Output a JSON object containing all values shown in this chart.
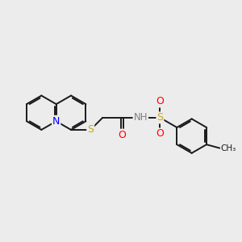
{
  "background_color": "#ececec",
  "bond_color": "#1a1a1a",
  "atom_colors": {
    "N": "#0000ff",
    "S": "#c8a800",
    "O": "#ff0000",
    "H": "#808080",
    "C": "#1a1a1a"
  },
  "bond_width": 1.4,
  "dbo": 0.055,
  "figsize": [
    3.0,
    3.0
  ],
  "dpi": 100
}
